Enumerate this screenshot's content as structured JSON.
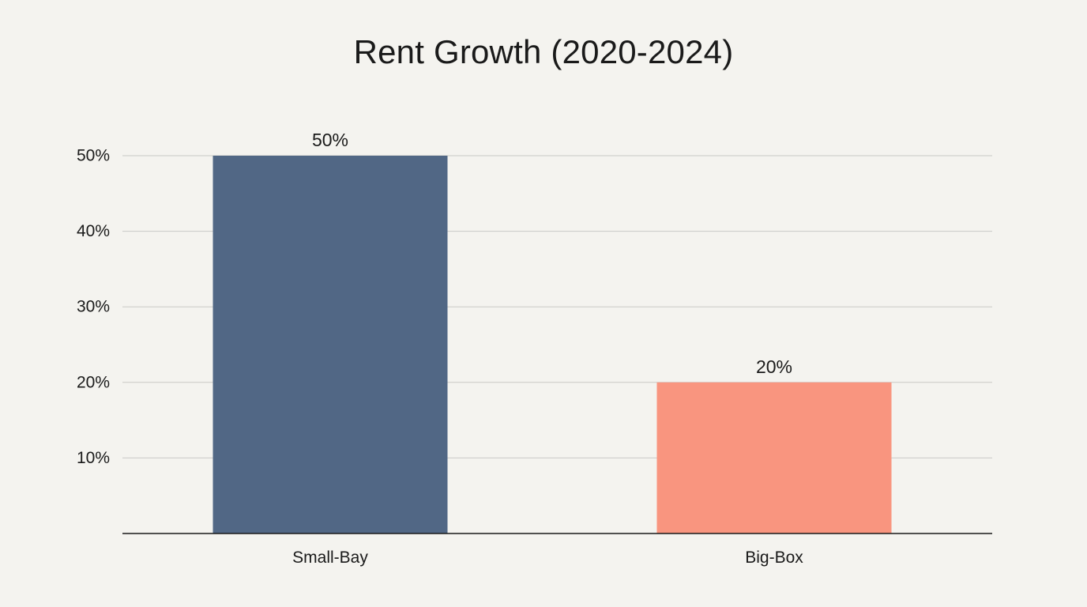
{
  "chart_data": {
    "type": "bar",
    "title": "Rent Growth (2020-2024)",
    "xlabel": "",
    "ylabel": "",
    "categories": [
      "Small-Bay",
      "Big-Box"
    ],
    "values": [
      50,
      20
    ],
    "data_labels": [
      "50%",
      "20%"
    ],
    "bar_colors": [
      "#516785",
      "#f9957f"
    ],
    "ylim": [
      0,
      50
    ],
    "yticks": [
      10,
      20,
      30,
      40,
      50
    ],
    "ytick_labels": [
      "10%",
      "20%",
      "30%",
      "40%",
      "50%"
    ],
    "grid": true,
    "legend": "none"
  },
  "style": {
    "background": "#f4f3ef",
    "gridline_color": "#c9c9c6",
    "axis_color": "#1a1a1a",
    "text_color": "#1a1a1a"
  }
}
